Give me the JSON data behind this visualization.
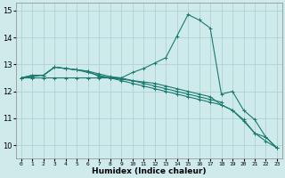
{
  "xlabel": "Humidex (Indice chaleur)",
  "ylabel": "",
  "xlim": [
    -0.5,
    23.5
  ],
  "ylim": [
    9.5,
    15.3
  ],
  "yticks": [
    10,
    11,
    12,
    13,
    14,
    15
  ],
  "xticks": [
    0,
    1,
    2,
    3,
    4,
    5,
    6,
    7,
    8,
    9,
    10,
    11,
    12,
    13,
    14,
    15,
    16,
    17,
    18,
    19,
    20,
    21,
    22,
    23
  ],
  "bg_color": "#ceeaea",
  "grid_color": "#aacece",
  "line_color": "#1a7a6e",
  "series": [
    {
      "x": [
        0,
        1,
        2,
        3,
        4,
        5,
        6,
        7,
        8,
        9,
        10,
        11,
        12,
        13,
        14,
        15,
        16,
        17,
        18
      ],
      "y": [
        12.5,
        12.6,
        12.6,
        12.9,
        12.85,
        12.8,
        12.75,
        12.65,
        12.55,
        12.5,
        12.4,
        12.3,
        12.2,
        12.1,
        12.0,
        11.9,
        11.8,
        11.7,
        11.6
      ]
    },
    {
      "x": [
        0,
        1,
        2,
        3,
        4,
        5,
        6,
        7,
        8,
        9,
        10,
        11,
        12,
        13,
        14,
        15,
        16,
        17,
        18,
        19,
        20,
        21,
        22,
        23
      ],
      "y": [
        12.5,
        12.6,
        12.6,
        12.9,
        12.85,
        12.8,
        12.7,
        12.6,
        12.5,
        12.4,
        12.3,
        12.2,
        12.1,
        12.0,
        11.9,
        11.8,
        11.7,
        11.6,
        11.5,
        11.3,
        10.9,
        10.45,
        10.15,
        9.9
      ]
    },
    {
      "x": [
        0,
        1,
        2,
        3,
        4,
        5,
        6,
        7,
        8,
        9,
        10,
        11,
        12,
        13,
        14,
        15,
        16,
        17,
        18,
        19,
        20,
        21,
        22,
        23
      ],
      "y": [
        12.5,
        12.5,
        12.5,
        12.5,
        12.5,
        12.5,
        12.5,
        12.5,
        12.5,
        12.5,
        12.7,
        12.85,
        13.05,
        13.25,
        14.05,
        14.85,
        14.65,
        14.35,
        11.9,
        12.0,
        11.3,
        10.95,
        10.3,
        9.9
      ]
    },
    {
      "x": [
        0,
        1,
        2,
        3,
        4,
        5,
        6,
        7,
        8,
        9,
        10,
        11,
        12,
        13,
        14,
        15,
        16,
        17,
        18,
        19,
        20,
        21,
        22,
        23
      ],
      "y": [
        12.5,
        12.55,
        12.6,
        12.9,
        12.85,
        12.8,
        12.75,
        12.55,
        12.5,
        12.45,
        12.4,
        12.35,
        12.3,
        12.2,
        12.1,
        12.0,
        11.9,
        11.8,
        11.5,
        11.3,
        10.95,
        10.45,
        10.3,
        9.9
      ]
    }
  ]
}
